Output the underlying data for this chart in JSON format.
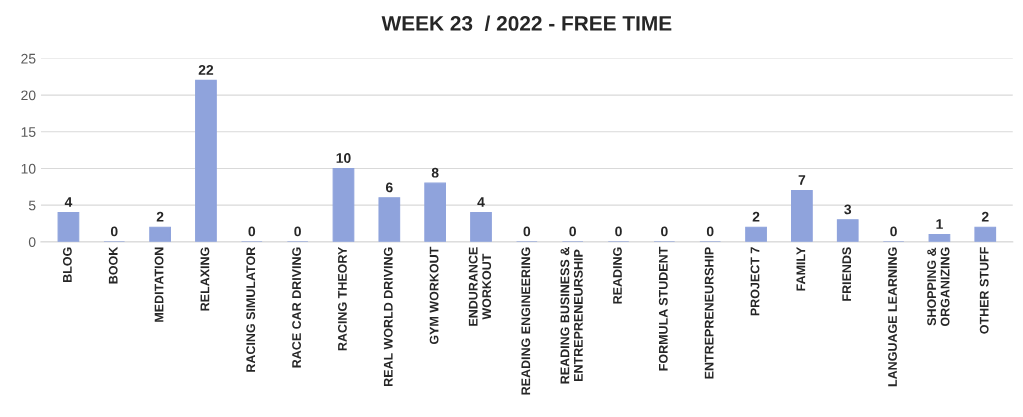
{
  "chart_data": {
    "type": "bar",
    "title": "WEEK 23  / 2022 - FREE TIME",
    "categories": [
      "BLOG",
      "BOOK",
      "MEDITATION",
      "RELAXING",
      "RACING SIMULATOR",
      "RACE CAR DRIVING",
      "RACING THEORY",
      "REAL WORLD DRIVING",
      "GYM WORKOUT",
      "ENDURANCE\nWORKOUT",
      "READING ENGINEERING",
      "READING BUSINESS &\nENTREPRENEURSHIP",
      "READING",
      "FORMULA STUDENT",
      "ENTREPRENEURSHIP",
      "PROJECT 7",
      "FAMILY",
      "FRIENDS",
      "LANGUAGE LEARNING",
      "SHOPPING &\nORGANIZING",
      "OTHER STUFF"
    ],
    "values": [
      4,
      0,
      2,
      22,
      0,
      0,
      10,
      6,
      8,
      4,
      0,
      0,
      0,
      0,
      0,
      2,
      7,
      3,
      0,
      1,
      2
    ],
    "color": "#8fa3dc",
    "data_labels": true,
    "ylim": [
      0,
      25
    ],
    "yticks": [
      0,
      5,
      10,
      15,
      20,
      25
    ],
    "grid": "y",
    "legend": false
  }
}
